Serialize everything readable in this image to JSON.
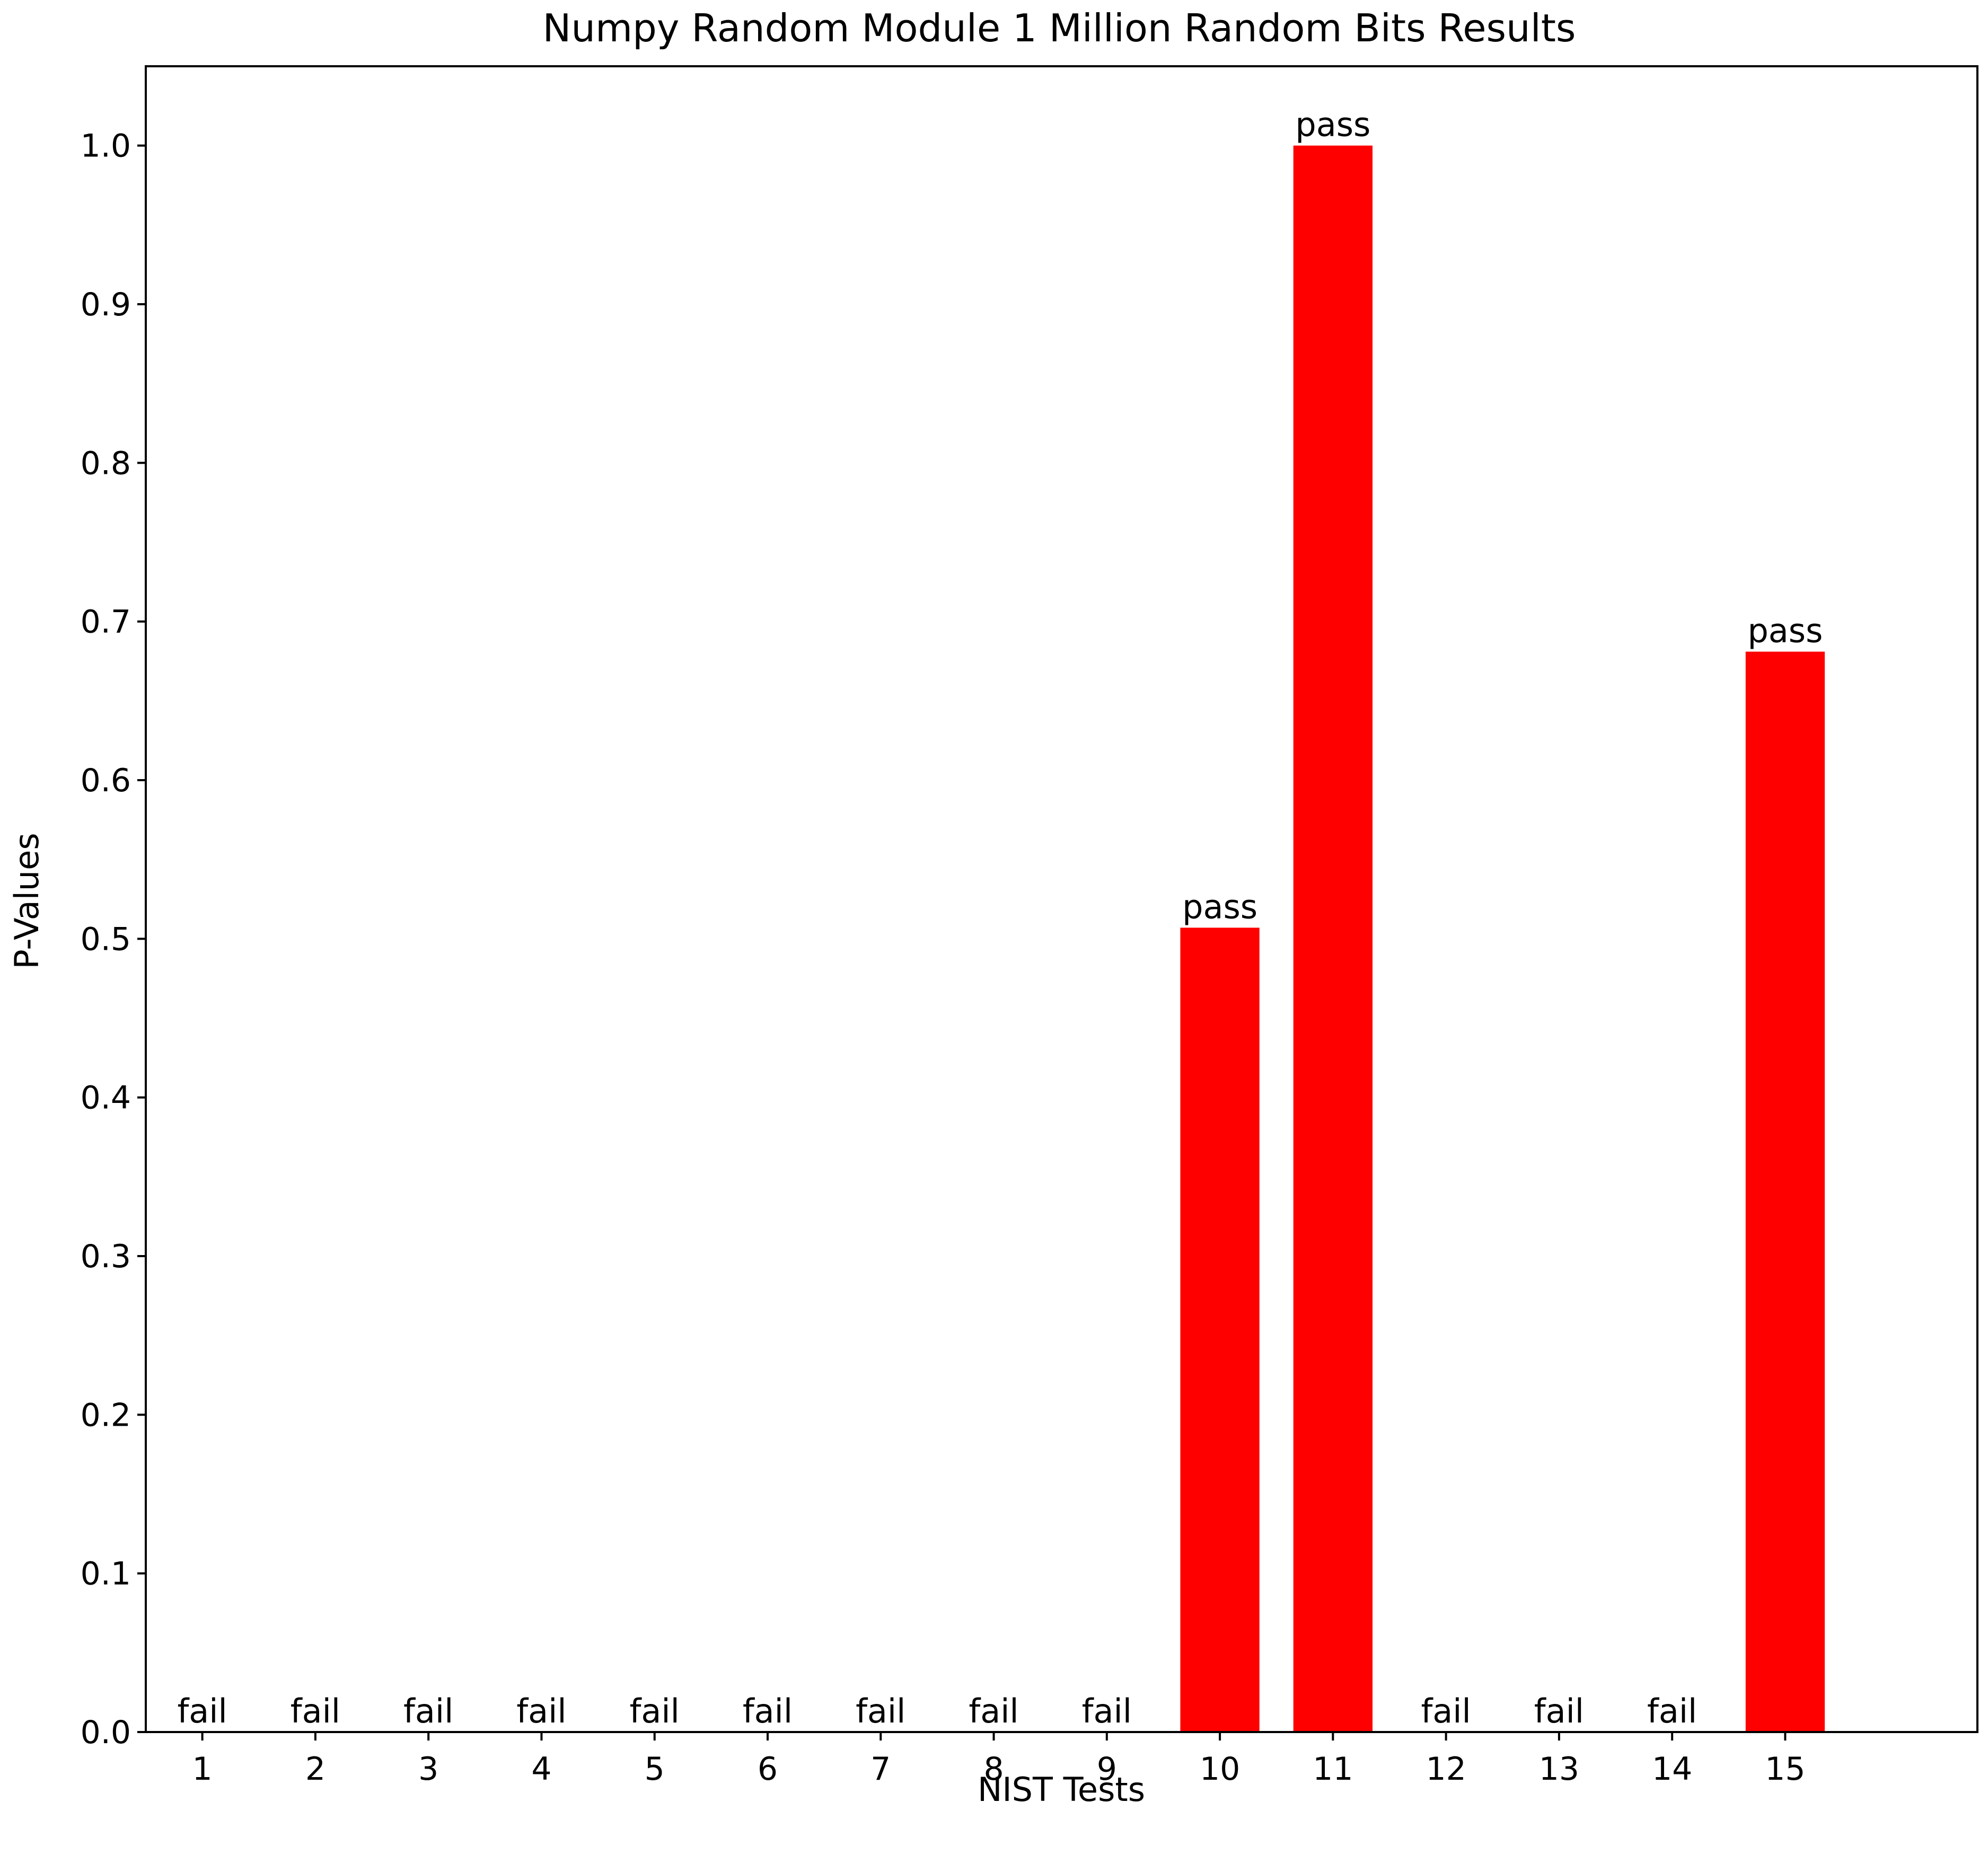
{
  "chart_data": {
    "type": "bar",
    "title": "Numpy Random Module 1 Million Random Bits Results",
    "xlabel": "NIST Tests",
    "ylabel": "P-Values",
    "categories": [
      "1",
      "2",
      "3",
      "4",
      "5",
      "6",
      "7",
      "8",
      "9",
      "10",
      "11",
      "12",
      "13",
      "14",
      "15"
    ],
    "values": [
      0,
      0,
      0,
      0,
      0,
      0,
      0,
      0,
      0,
      0.507,
      1.0,
      0,
      0,
      0,
      0.681
    ],
    "bar_labels": [
      "fail",
      "fail",
      "fail",
      "fail",
      "fail",
      "fail",
      "fail",
      "fail",
      "fail",
      "pass",
      "pass",
      "fail",
      "fail",
      "fail",
      "pass"
    ],
    "ylim": [
      0,
      1.05
    ],
    "xlim": [
      -0.5,
      15.7
    ],
    "yticks": [
      "0.0",
      "0.1",
      "0.2",
      "0.3",
      "0.4",
      "0.5",
      "0.6",
      "0.7",
      "0.8",
      "0.9",
      "1.0"
    ],
    "bar_color": "#ff0000",
    "grid": false,
    "legend": "none"
  }
}
